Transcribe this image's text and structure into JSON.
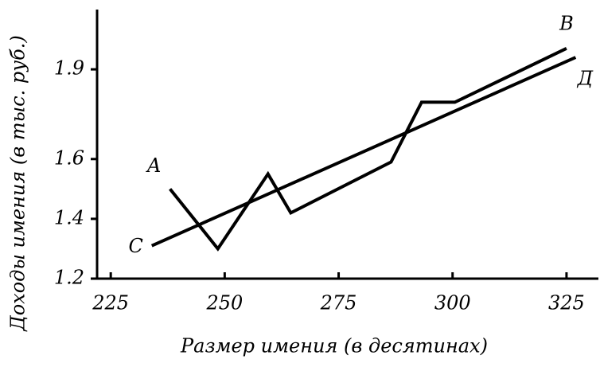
{
  "chart_data": {
    "type": "line",
    "x_label": "Размер имения (в десятинах)",
    "y_label": "Доходы имения (в тыс. руб.)",
    "xlim": [
      222,
      332
    ],
    "xticks": [
      225,
      250,
      275,
      300,
      325
    ],
    "ylim": [
      1.2,
      2.1
    ],
    "yticks": [
      1.2,
      1.4,
      1.6,
      1.9
    ],
    "color": "#000000",
    "series": [
      {
        "start_label": "A",
        "end_label": "B",
        "x": [
          238,
          248.5,
          259.5,
          264.5,
          286.5,
          293.2,
          300.5,
          325
        ],
        "values": [
          1.5,
          1.3,
          1.55,
          1.42,
          1.59,
          1.79,
          1.79,
          1.97
        ]
      },
      {
        "start_label": "C",
        "end_label": "Д",
        "x": [
          234,
          327
        ],
        "values": [
          1.31,
          1.94
        ]
      }
    ]
  }
}
